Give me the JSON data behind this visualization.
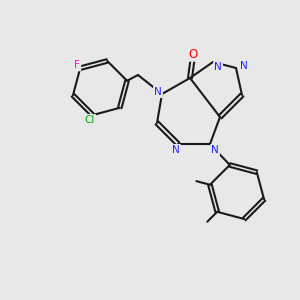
{
  "bg_color": "#e8e8e8",
  "bond_color": "#1a1a1a",
  "bond_width": 1.5,
  "atom_colors": {
    "N": "#2020ff",
    "O": "#ff0000",
    "F": "#ff00ff",
    "Cl": "#00aa00",
    "C": "#1a1a1a"
  },
  "font_size": 7.5
}
